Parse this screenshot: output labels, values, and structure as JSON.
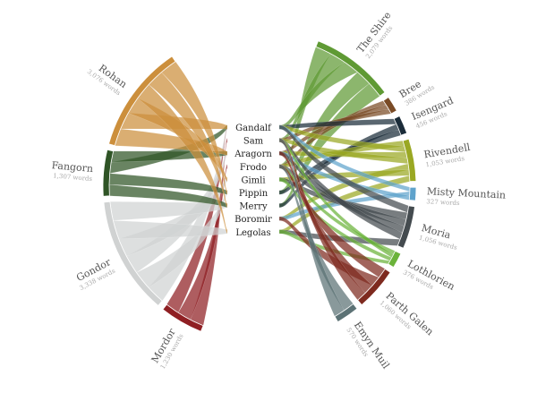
{
  "chart_data": {
    "type": "chord",
    "characters": [
      "Gandalf",
      "Sam",
      "Aragorn",
      "Frodo",
      "Gimli",
      "Pippin",
      "Merry",
      "Boromir",
      "Legolas"
    ],
    "locations": [
      {
        "name": "Mordor",
        "words_label": "1,230 words",
        "words": 1230,
        "color": "#8f1f23",
        "side": "left",
        "chars": [
          "Sam",
          "Frodo",
          "Gandalf"
        ]
      },
      {
        "name": "Gondor",
        "words_label": "3,338 words",
        "words": 3338,
        "color": "#d0d2d2",
        "side": "left",
        "chars": [
          "Gandalf",
          "Pippin",
          "Aragorn",
          "Gimli",
          "Legolas",
          "Merry"
        ]
      },
      {
        "name": "Fangorn",
        "words_label": "1,307 words",
        "words": 1307,
        "color": "#2f5426",
        "side": "left",
        "chars": [
          "Merry",
          "Pippin",
          "Gandalf",
          "Aragorn"
        ]
      },
      {
        "name": "Rohan",
        "words_label": "3,076 words",
        "words": 3076,
        "color": "#cc8f3c",
        "side": "left",
        "chars": [
          "Aragorn",
          "Gandalf",
          "Gimli",
          "Legolas",
          "Merry",
          "Pippin"
        ]
      },
      {
        "name": "The Shire",
        "words_label": "2,079 words",
        "words": 2079,
        "color": "#5f9a34",
        "side": "right",
        "chars": [
          "Frodo",
          "Sam",
          "Gandalf",
          "Pippin",
          "Merry"
        ]
      },
      {
        "name": "Bree",
        "words_label": "386 words",
        "words": 386,
        "color": "#7a4b26",
        "side": "right",
        "chars": [
          "Frodo",
          "Aragorn",
          "Sam"
        ]
      },
      {
        "name": "Isengard",
        "words_label": "456 words",
        "words": 456,
        "color": "#1b2c39",
        "side": "right",
        "chars": [
          "Gandalf",
          "Merry",
          "Pippin"
        ]
      },
      {
        "name": "Rivendell",
        "words_label": "1,053 words",
        "words": 1053,
        "color": "#9aa823",
        "side": "right",
        "chars": [
          "Frodo",
          "Gandalf",
          "Aragorn",
          "Sam",
          "Boromir",
          "Gimli",
          "Legolas"
        ]
      },
      {
        "name": "Misty Mountain",
        "words_label": "327 words",
        "words": 327,
        "color": "#5fa3cc",
        "side": "right",
        "chars": [
          "Gandalf",
          "Boromir",
          "Aragorn"
        ]
      },
      {
        "name": "Moria",
        "words_label": "1,056 words",
        "words": 1056,
        "color": "#444b4f",
        "side": "right",
        "chars": [
          "Gandalf",
          "Gimli",
          "Frodo",
          "Aragorn",
          "Sam",
          "Legolas"
        ]
      },
      {
        "name": "Lothlorien",
        "words_label": "376 words",
        "words": 376,
        "color": "#6bb33a",
        "side": "right",
        "chars": [
          "Frodo",
          "Sam",
          "Gimli",
          "Legolas"
        ]
      },
      {
        "name": "Parth Galen",
        "words_label": "1,060 words",
        "words": 1060,
        "color": "#7e2a1f",
        "side": "right",
        "chars": [
          "Frodo",
          "Boromir",
          "Aragorn",
          "Sam"
        ]
      },
      {
        "name": "Emyn Muil",
        "words_label": "570 words",
        "words": 570,
        "color": "#5c7275",
        "side": "right",
        "chars": [
          "Frodo",
          "Sam"
        ]
      }
    ]
  }
}
